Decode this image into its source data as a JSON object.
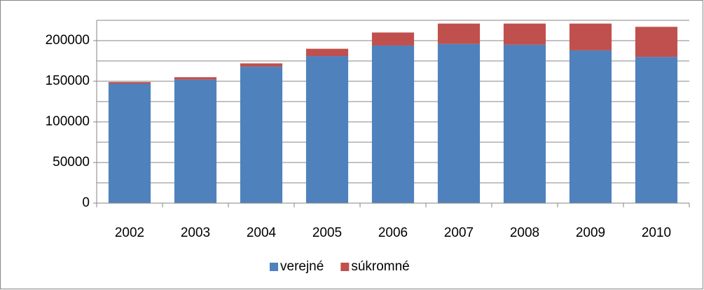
{
  "chart_data": {
    "type": "stacked_bar",
    "categories": [
      "2002",
      "2003",
      "2004",
      "2005",
      "2006",
      "2007",
      "2008",
      "2009",
      "2010"
    ],
    "series": [
      {
        "name": "verejné",
        "color": "#4f81bd",
        "values": [
          147000,
          152000,
          168000,
          181000,
          194000,
          196000,
          195000,
          188000,
          180000
        ]
      },
      {
        "name": "súkromné",
        "color": "#c0504d",
        "values": [
          2000,
          3000,
          4000,
          9000,
          16000,
          25000,
          26000,
          33000,
          37000
        ]
      }
    ],
    "ylim": [
      0,
      225000
    ],
    "yticks": [
      0,
      50000,
      100000,
      150000,
      200000
    ],
    "minor_gridlines": [
      25000,
      75000,
      125000,
      175000,
      225000
    ],
    "grid": true,
    "legend": "bottom"
  }
}
